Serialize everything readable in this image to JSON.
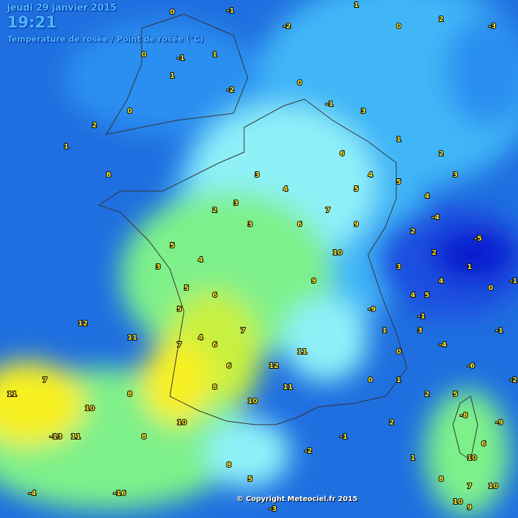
{
  "header": {
    "date": "jeudi 29 janvier 2015",
    "time": "19:21",
    "subtitle": "Température de rosée / Point de rosée (°C)"
  },
  "copyright": "© Copyright Meteociel.fr 2015",
  "colors": {
    "sea_deep": "#1f6fe0",
    "cold_blue": "#1b4fe0",
    "very_cold": "#0a1ad0",
    "light_blue": "#3fb6f7",
    "cyan": "#8ff0f8",
    "green": "#7ef08a",
    "yellow_green": "#c8f040",
    "yellow": "#f8f020",
    "label": "#ffe82a"
  },
  "station_values": [
    "0",
    "-1",
    "-2",
    "1",
    "0",
    "2",
    "-3",
    "-1",
    "0",
    "1",
    "1",
    "-2",
    "0",
    "2",
    "1",
    "0",
    "-1",
    "3",
    "1",
    "2",
    "3",
    "4",
    "3",
    "2",
    "3",
    "5",
    "4",
    "3",
    "5",
    "6",
    "5",
    "4",
    "6",
    "7",
    "8",
    "7",
    "6",
    "8",
    "7",
    "8",
    "10",
    "11",
    "10",
    "11",
    "12",
    "11",
    "9",
    "10",
    "9",
    "7",
    "6",
    "5",
    "6",
    "4",
    "5",
    "4",
    "3",
    "2",
    "3",
    "4",
    "5",
    "3",
    "2",
    "1",
    "0",
    "-1",
    "-4",
    "-6",
    "-8",
    "-9",
    "-13",
    "-16",
    "-3",
    "-2",
    "-1",
    "0",
    "1",
    "2",
    "5",
    "6",
    "7",
    "8",
    "9",
    "10",
    "8",
    "8",
    "5",
    "2",
    "1",
    "-2",
    "-4",
    "11",
    "10",
    "10",
    "10",
    "12",
    "11",
    "4",
    "-1",
    "-4",
    "-5",
    "-9",
    "0",
    "1",
    "-1",
    "-2"
  ]
}
